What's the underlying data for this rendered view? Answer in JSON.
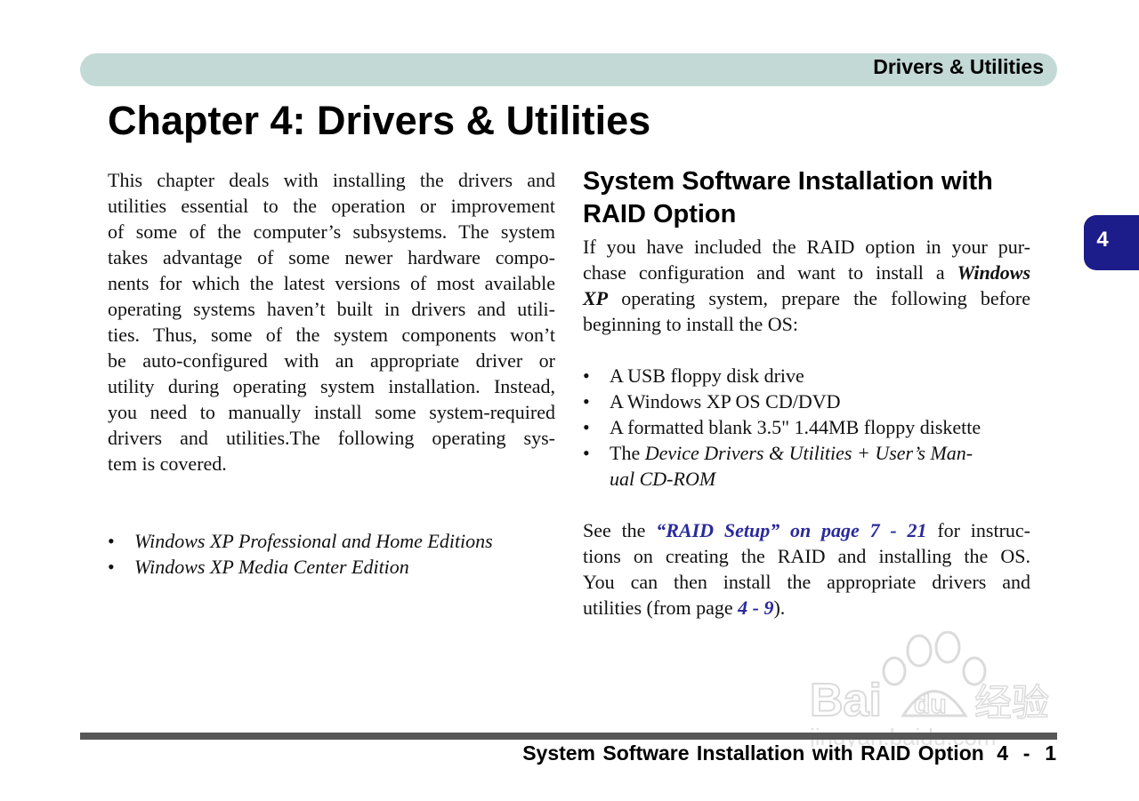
{
  "header": {
    "running_title": "Drivers & Utilities"
  },
  "chapter_title": "Chapter 4: Drivers & Utilities",
  "chapter_tab": "4",
  "left": {
    "intro_lines": [
      "This chapter deals with installing the drivers and",
      "utilities essential to the operation or improvement",
      "of some of the computer’s subsystems. The system",
      "takes advantage of some newer hardware compo-",
      "nents for which the latest versions of most available",
      "operating systems haven’t built in drivers and utili-",
      "ties. Thus, some of the system components won’t",
      "be auto-configured with an appropriate driver or",
      "utility during operating system installation. Instead,",
      "you need to manually install some system-required",
      "drivers and utilities.The following operating sys-",
      "tem is covered."
    ],
    "bullets": [
      "Windows XP Professional and Home Editions",
      "Windows XP Media Center Edition"
    ],
    "bullet_char": "•"
  },
  "right": {
    "heading_lines": [
      "System Software Installation with",
      "RAID Option"
    ],
    "para1_lines": [
      [
        {
          "t": "If you have included the RAID option in your pur-"
        }
      ],
      [
        {
          "t": "chase configuration and want to install a "
        },
        {
          "t": "Windows",
          "s": "bi"
        }
      ],
      [
        {
          "t": "XP",
          "s": "bi"
        },
        {
          "t": " operating system, prepare the following before"
        }
      ],
      [
        {
          "t": "beginning to install the OS:"
        }
      ]
    ],
    "bullets": [
      [
        {
          "t": "A USB floppy disk drive"
        }
      ],
      [
        {
          "t": "A Windows XP OS CD/DVD"
        }
      ],
      [
        {
          "t": "A formatted blank 3.5\" 1.44MB floppy diskette"
        }
      ],
      [
        {
          "t": "The "
        },
        {
          "t": "Device Drivers & Utilities + User’s Man-",
          "s": "i"
        }
      ]
    ],
    "bullet_continuation": "ual CD-ROM",
    "para2_lines": [
      [
        {
          "t": "See the "
        },
        {
          "t": "“RAID Setup” on page 7 - 21",
          "s": "link"
        },
        {
          "t": " for instruc-"
        }
      ],
      [
        {
          "t": "tions on creating the RAID and installing the OS."
        }
      ],
      [
        {
          "t": "You can then install the appropriate drivers and"
        }
      ],
      [
        {
          "t": "utilities (from page "
        },
        {
          "t": "4 - 9",
          "s": "link"
        },
        {
          "t": ")."
        }
      ]
    ]
  },
  "footer": {
    "section": "System Software Installation with RAID Option",
    "page": "4  -  1"
  },
  "watermark": {
    "logo_text": "Bai du 经验",
    "url_text": "jingyan.baidu.com"
  },
  "colors": {
    "header_bar": "#c2d9d5",
    "chapter_tab": "#1c1c8a",
    "link": "#2a2a9c",
    "footer_bar": "#575757"
  }
}
